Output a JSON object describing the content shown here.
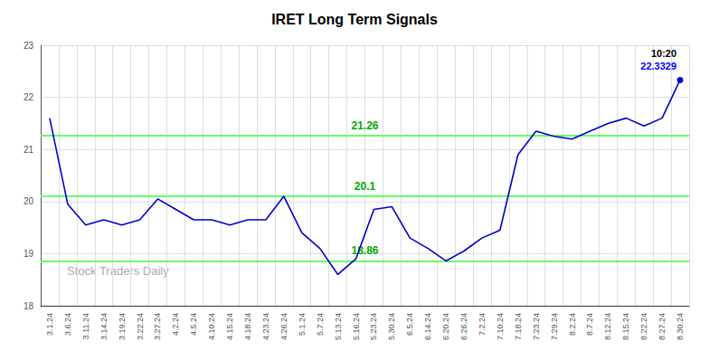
{
  "chart_data": {
    "type": "line",
    "title": "IRET Long Term Signals",
    "color": "#0000cc",
    "categories": [
      "3.1.24",
      "3.6.24",
      "3.11.24",
      "3.14.24",
      "3.19.24",
      "3.22.24",
      "3.27.24",
      "4.2.24",
      "4.5.24",
      "4.10.24",
      "4.15.24",
      "4.18.24",
      "4.23.24",
      "4.26.24",
      "5.1.24",
      "5.7.24",
      "5.13.24",
      "5.16.24",
      "5.23.24",
      "5.30.24",
      "6.5.24",
      "6.14.24",
      "6.20.24",
      "6.26.24",
      "7.2.24",
      "7.10.24",
      "7.18.24",
      "7.23.24",
      "7.29.24",
      "8.2.24",
      "8.7.24",
      "8.12.24",
      "8.15.24",
      "8.22.24",
      "8.27.24",
      "8.30.24"
    ],
    "values": [
      21.6,
      19.95,
      19.55,
      19.65,
      19.55,
      19.65,
      20.05,
      19.85,
      19.65,
      19.65,
      19.55,
      19.65,
      19.65,
      20.1,
      19.4,
      19.1,
      18.6,
      18.9,
      19.85,
      19.9,
      19.3,
      19.1,
      18.86,
      19.05,
      19.3,
      19.45,
      20.9,
      21.35,
      21.25,
      21.2,
      21.35,
      21.5,
      21.6,
      21.45,
      21.6,
      22.3329
    ],
    "ylim": [
      18,
      23
    ],
    "yticks": [
      18,
      19,
      20,
      21,
      22,
      23
    ],
    "grid": true,
    "hlines": [
      {
        "value": 21.26,
        "label": "21.26",
        "color": "#66ff66",
        "label_color": "#00aa00"
      },
      {
        "value": 20.1,
        "label": "20.1",
        "color": "#66ff66",
        "label_color": "#00aa00"
      },
      {
        "value": 18.86,
        "label": "18.86",
        "color": "#66ff66",
        "label_color": "#00aa00"
      }
    ],
    "annotations": [
      {
        "text": "10:20",
        "color": "#000000"
      },
      {
        "text": "22.3329",
        "color": "#0000ff"
      }
    ],
    "watermark": {
      "text": "Stock Traders Daily",
      "color": "#aaaaaa"
    }
  }
}
